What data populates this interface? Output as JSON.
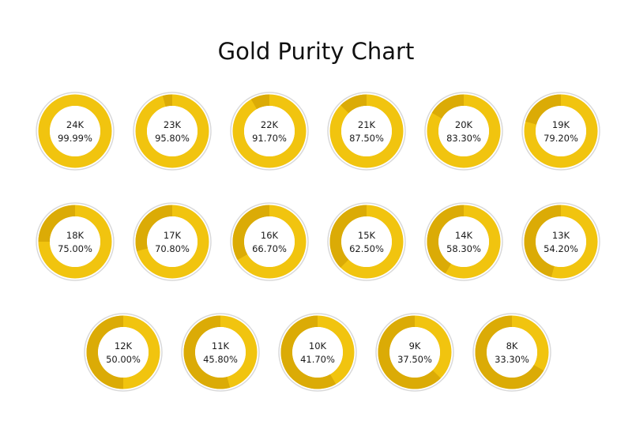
{
  "chart_data": {
    "type": "pie",
    "title": "Gold Purity Chart",
    "colors": {
      "filled": "#f1c40f",
      "remainder": "#dbab06",
      "outer_border": "#d9d9d9",
      "background": "#ffffff"
    },
    "items": [
      {
        "karat": "24K",
        "percent_label": "99.99%",
        "value": 99.99
      },
      {
        "karat": "23K",
        "percent_label": "95.80%",
        "value": 95.8
      },
      {
        "karat": "22K",
        "percent_label": "91.70%",
        "value": 91.7
      },
      {
        "karat": "21K",
        "percent_label": "87.50%",
        "value": 87.5
      },
      {
        "karat": "20K",
        "percent_label": "83.30%",
        "value": 83.3
      },
      {
        "karat": "19K",
        "percent_label": "79.20%",
        "value": 79.2
      },
      {
        "karat": "18K",
        "percent_label": "75.00%",
        "value": 75.0
      },
      {
        "karat": "17K",
        "percent_label": "70.80%",
        "value": 70.8
      },
      {
        "karat": "16K",
        "percent_label": "66.70%",
        "value": 66.7
      },
      {
        "karat": "15K",
        "percent_label": "62.50%",
        "value": 62.5
      },
      {
        "karat": "14K",
        "percent_label": "58.30%",
        "value": 58.3
      },
      {
        "karat": "13K",
        "percent_label": "54.20%",
        "value": 54.2
      },
      {
        "karat": "12K",
        "percent_label": "50.00%",
        "value": 50.0
      },
      {
        "karat": "11K",
        "percent_label": "45.80%",
        "value": 45.8
      },
      {
        "karat": "10K",
        "percent_label": "41.70%",
        "value": 41.7
      },
      {
        "karat": "9K",
        "percent_label": "37.50%",
        "value": 37.5
      },
      {
        "karat": "8K",
        "percent_label": "33.30%",
        "value": 33.3
      }
    ]
  }
}
